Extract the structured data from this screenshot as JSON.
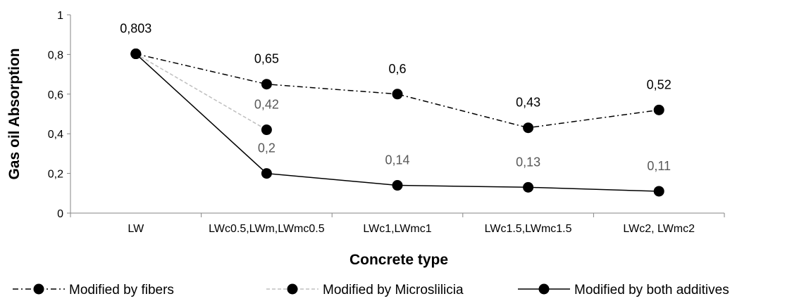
{
  "chart_data": {
    "type": "line",
    "title": "",
    "xlabel": "Concrete type",
    "ylabel": "Gas oil Absorption",
    "ylim": [
      0,
      1
    ],
    "yticks": [
      "0",
      "0,2",
      "0,4",
      "0,6",
      "0,8",
      "1"
    ],
    "categories": [
      "LW",
      "LWc0.5,LWm,LWmc0.5",
      "LWc1,LWmc1",
      "LWc1.5,LWmc1.5",
      "LWc2, LWmc2"
    ],
    "series": [
      {
        "name": "Modified by fibers",
        "values": [
          0.803,
          0.65,
          0.6,
          0.43,
          0.52
        ],
        "labels": [
          "0,803",
          "0,65",
          "0,6",
          "0,43",
          "0,52"
        ],
        "line_style": "dash-dot",
        "color": "#000000",
        "label_color": "#000000"
      },
      {
        "name": "Modified by Microslilicia",
        "values": [
          0.803,
          0.42,
          null,
          null,
          null
        ],
        "labels": [
          "",
          "0,42",
          "",
          "",
          ""
        ],
        "line_style": "dashed",
        "color": "#bfbfbf",
        "label_color": "#595959"
      },
      {
        "name": "Modified by both additives",
        "values": [
          0.803,
          0.2,
          0.14,
          0.13,
          0.11
        ],
        "labels": [
          "",
          "0,2",
          "0,14",
          "0,13",
          "0,11"
        ],
        "line_style": "solid",
        "color": "#000000",
        "label_color": "#595959"
      }
    ],
    "grid": false,
    "legend_position": "bottom"
  }
}
